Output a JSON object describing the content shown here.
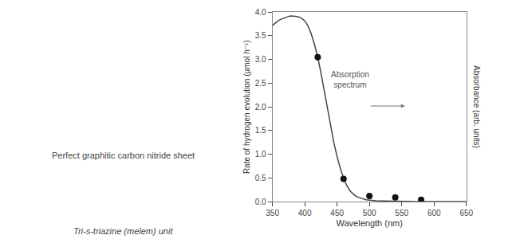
{
  "chart_data": {
    "type": "line",
    "xlabel": "Wavelength (nm)",
    "ylabel": "Rate of hydrogen evolution (μmol h⁻¹)",
    "y2label": "Absorbance (arb. units)",
    "series": [
      {
        "type": "line",
        "color": "#444444",
        "x": [
          350,
          355,
          360,
          365,
          370,
          375,
          378,
          382,
          386,
          390,
          394,
          398,
          402,
          406,
          410,
          415,
          420,
          425,
          430,
          435,
          440,
          445,
          450,
          455,
          460,
          465,
          470,
          475,
          480,
          485,
          490,
          495,
          500,
          510,
          520,
          530,
          540,
          550,
          560,
          570,
          580,
          600,
          650
        ],
        "values": [
          3.72,
          3.78,
          3.83,
          3.86,
          3.89,
          3.91,
          3.92,
          3.92,
          3.91,
          3.9,
          3.88,
          3.84,
          3.78,
          3.68,
          3.54,
          3.32,
          3.05,
          2.72,
          2.35,
          1.96,
          1.58,
          1.24,
          0.95,
          0.7,
          0.5,
          0.34,
          0.23,
          0.16,
          0.11,
          0.08,
          0.06,
          0.04,
          0.03,
          0.02,
          0.015,
          0.01,
          0.008,
          0.006,
          0.005,
          0.004,
          0.003,
          0.002,
          0.001
        ]
      },
      {
        "type": "scatter",
        "color": "#111111",
        "x": [
          420,
          460,
          500,
          540,
          580
        ],
        "values": [
          3.05,
          0.48,
          0.12,
          0.09,
          0.04
        ]
      }
    ],
    "xlim": [
      350,
      650
    ],
    "ylim": [
      0,
      4
    ],
    "xticks": [
      350,
      400,
      450,
      500,
      550,
      600,
      650
    ],
    "yticks": [
      {
        "value": 0,
        "label": "0.0"
      },
      0.5,
      {
        "value": 1,
        "label": "1.0"
      },
      1.5,
      {
        "value": 2,
        "label": "2.0"
      },
      2.5,
      {
        "value": 3,
        "label": "3.0"
      },
      3.5,
      {
        "value": 4,
        "label": "4.0"
      }
    ],
    "grid": false,
    "annotations": [
      {
        "text": "Absorption\nspectrum",
        "x": 470,
        "y": 2.58,
        "arrow": {
          "x": [
            500,
            555
          ],
          "y": 2.02
        }
      }
    ],
    "captions": [
      "Perfect graphitic carbon nitride sheet",
      "Tri-s-triazine (melem) unit"
    ]
  }
}
